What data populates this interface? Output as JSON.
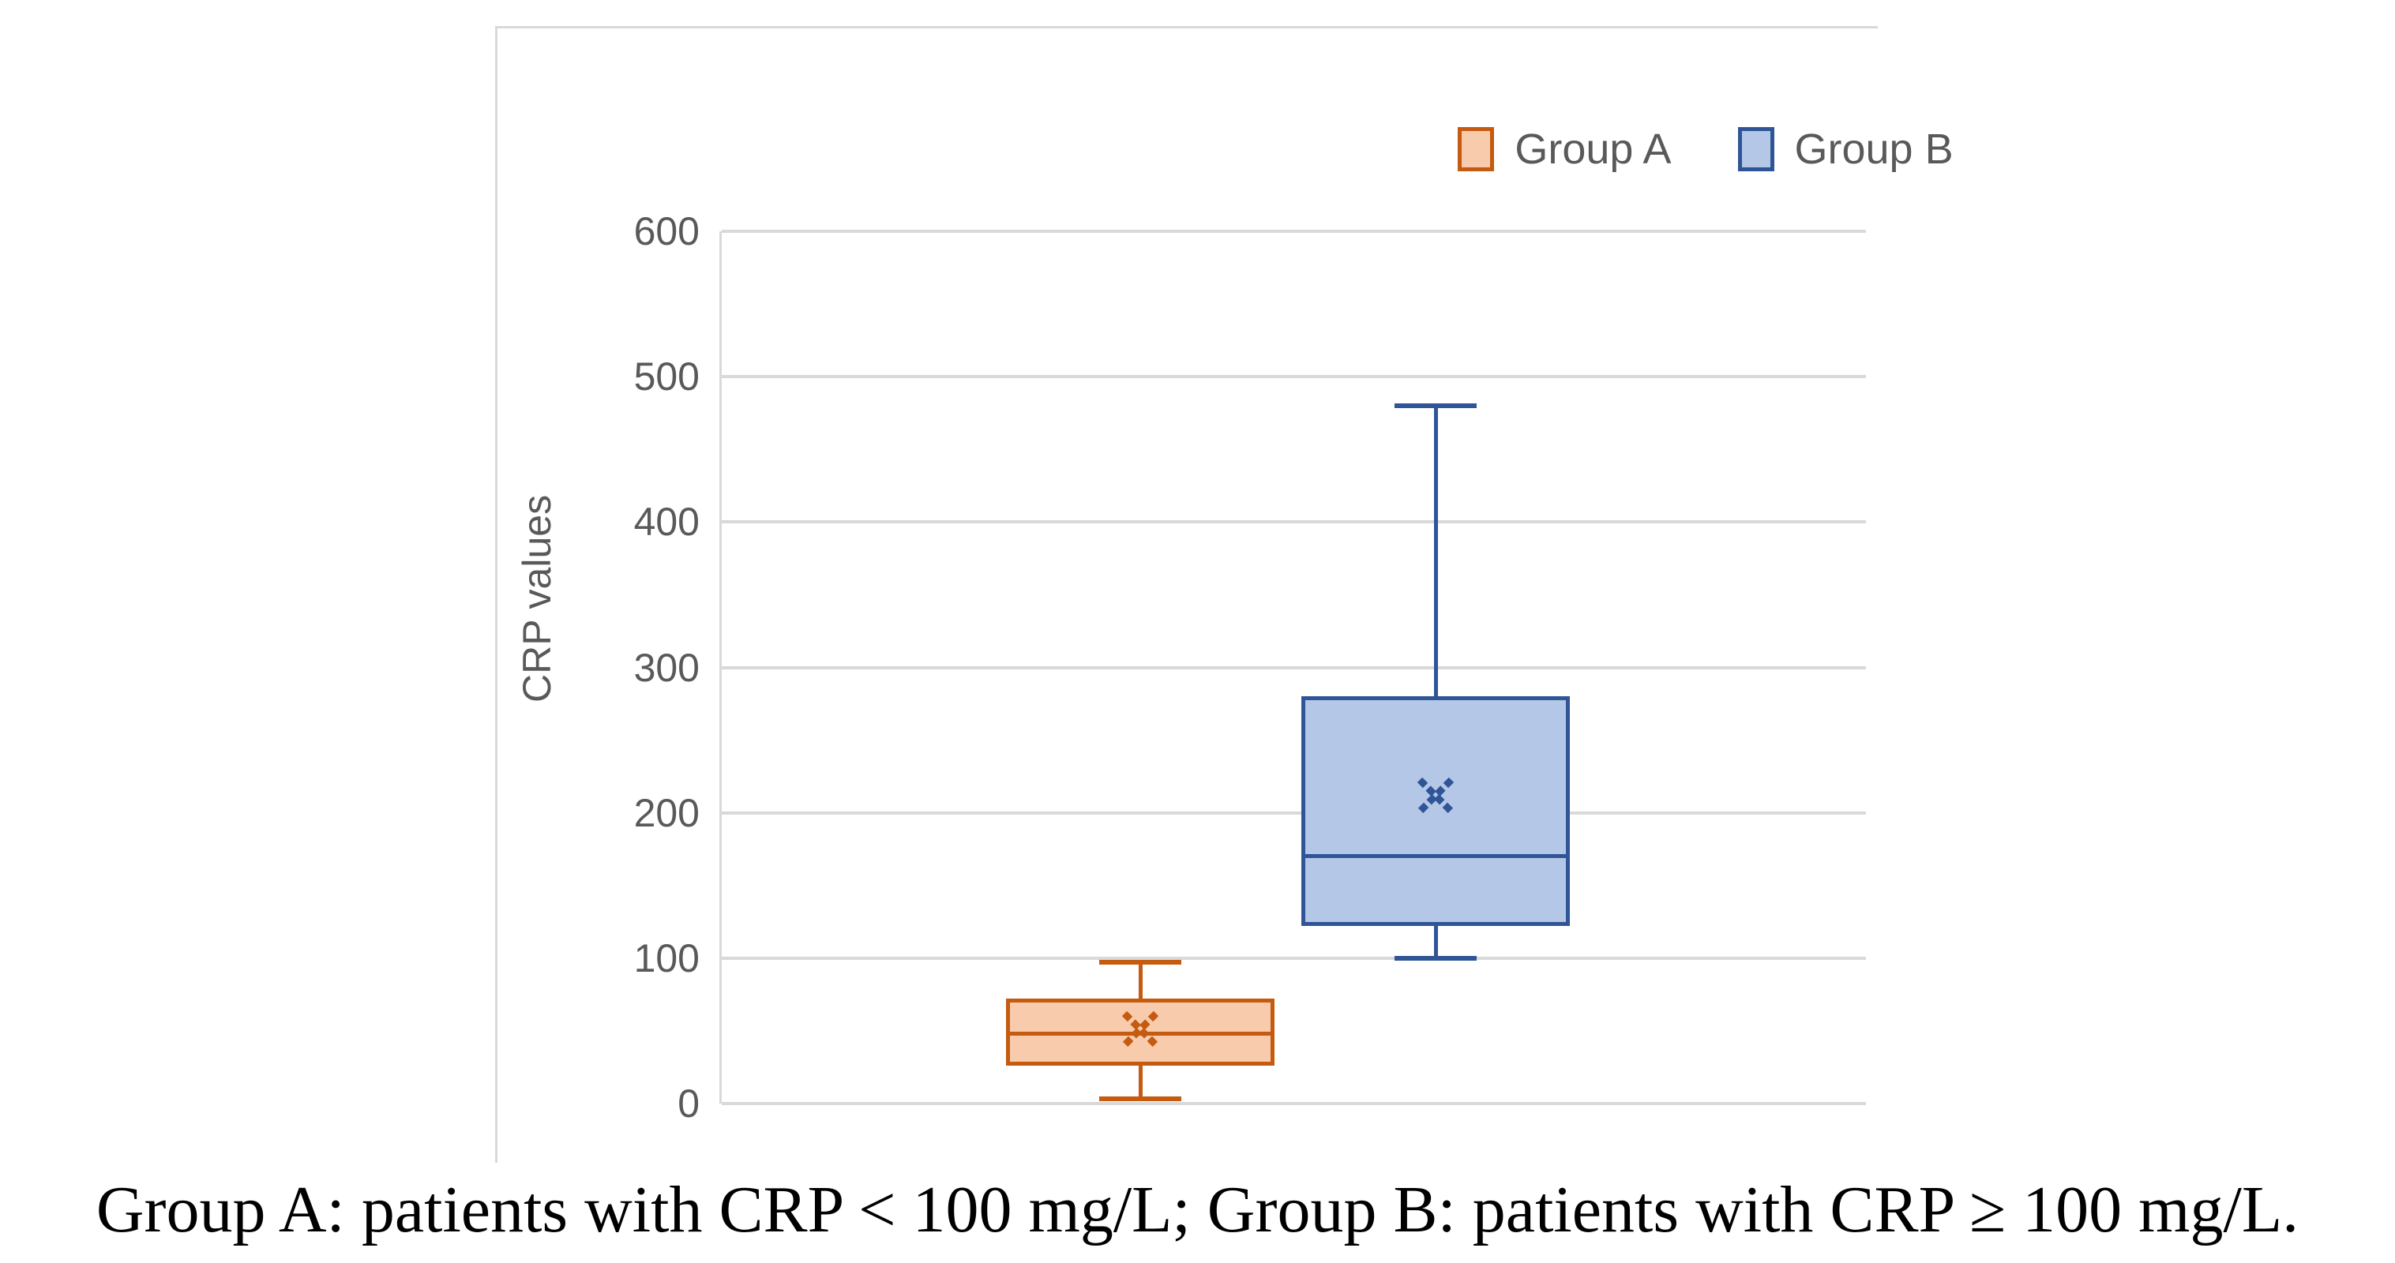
{
  "legend": {
    "items": [
      {
        "label": "Group A",
        "fill": "#F8CBAD",
        "border": "#C55A11"
      },
      {
        "label": "Group B",
        "fill": "#B4C7E7",
        "border": "#2F5597"
      }
    ]
  },
  "caption": {
    "text": "Group A: patients with CRP < 100 mg/L; Group B: patients with CRP ≥ 100 mg/L."
  },
  "colors": {
    "gridline": "#D9D9D9",
    "axis_text": "#595959",
    "background": "#FFFFFF"
  },
  "chart_data": {
    "type": "boxplot",
    "title": "",
    "xlabel": "",
    "ylabel": "CRP values",
    "ylim": [
      0,
      600
    ],
    "yticks": [
      0,
      100,
      200,
      300,
      400,
      500,
      600
    ],
    "grid": true,
    "legend_position": "top-center",
    "categories": [
      "Group A",
      "Group B"
    ],
    "series": [
      {
        "name": "Group A",
        "min": 3,
        "q1": 26,
        "median": 48,
        "mean": 51,
        "q3": 72,
        "max": 97,
        "fill": "#F8CBAD",
        "border": "#C55A11"
      },
      {
        "name": "Group B",
        "min": 100,
        "q1": 122,
        "median": 170,
        "mean": 212,
        "q3": 280,
        "max": 480,
        "fill": "#B4C7E7",
        "border": "#2F5597"
      }
    ]
  }
}
